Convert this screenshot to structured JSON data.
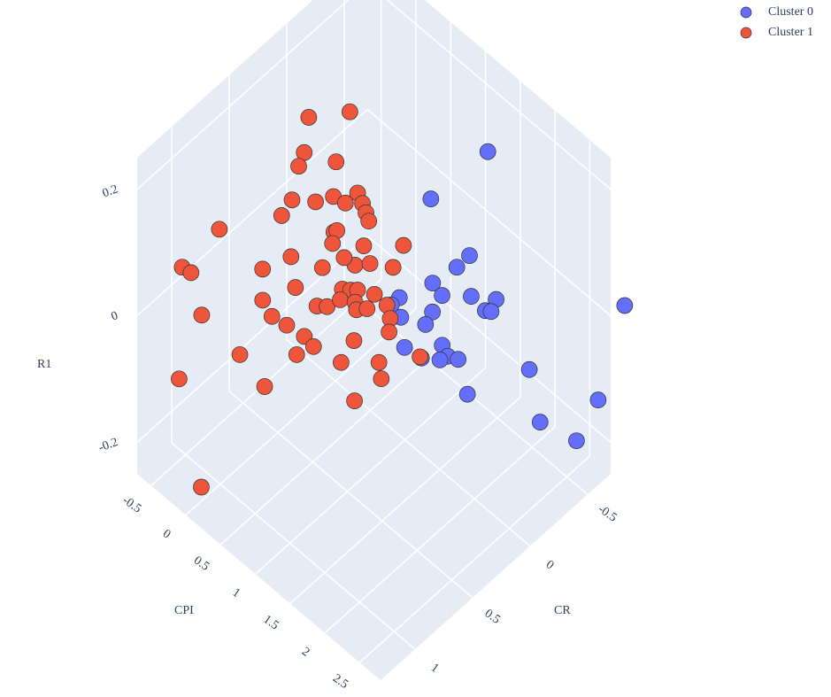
{
  "chart_data": {
    "type": "scatter3d",
    "xlabel": "CPI",
    "ylabel": "CR",
    "zlabel": "R1",
    "xlim": [
      -0.7,
      2.8
    ],
    "ylim": [
      -0.7,
      1.3
    ],
    "zlim": [
      -0.25,
      0.25
    ],
    "xticks": [
      -0.5,
      0,
      0.5,
      1,
      1.5,
      2,
      2.5
    ],
    "yticks": [
      -0.5,
      0,
      0.5,
      1
    ],
    "zticks": [
      -0.2,
      0,
      0.2
    ],
    "grid": true,
    "legend": "top-right",
    "series": [
      {
        "name": "Cluster 0",
        "color": "#636efa",
        "x": [
          1.53,
          1.29,
          1.73,
          1.68,
          1.58,
          1.7,
          1.87,
          2.08,
          2.04,
          2.09,
          1.66,
          1.35,
          1.35,
          1.47,
          1.66,
          1.85,
          1.59,
          1.93,
          1.98,
          1.85,
          1.75,
          2.18,
          2.59,
          2.82,
          2.62,
          2.53,
          2.64
        ],
        "y": [
          -0.4,
          -0.05,
          -0.12,
          -0.04,
          0.11,
          0.1,
          -0.05,
          -0.14,
          -0.07,
          -0.09,
          0.16,
          0.26,
          0.33,
          0.32,
          0.22,
          0.19,
          0.36,
          0.19,
          0.13,
          0.21,
          0.31,
          0.17,
          -0.12,
          -0.81,
          -0.7,
          -0.25,
          -0.5
        ],
        "z": [
          0.19,
          0.15,
          0.09,
          0.08,
          0.07,
          0.06,
          0.05,
          0.05,
          0.04,
          0.04,
          0.04,
          0.05,
          0.05,
          0.04,
          0.03,
          0.01,
          0.01,
          0,
          -0.01,
          -0.01,
          0,
          -0.04,
          -0.01,
          0,
          -0.15,
          -0.12,
          -0.18
        ]
      },
      {
        "name": "Cluster 1",
        "color": "#ef553b",
        "x": [
          0.08,
          0.39,
          0.18,
          0.2,
          0.44,
          0.7,
          0.55,
          0.64,
          0.41,
          0.22,
          0.22,
          0.77,
          0.82,
          0.91,
          -0.18,
          0.69,
          0.7,
          0.67,
          0.92,
          1.21,
          0.69,
          0.42,
          0.91,
          1.06,
          0.82,
          1.21,
          -0.35,
          -0.24,
          0.26,
          0.55,
          0.36,
          -0.02,
          0.51,
          0.64,
          0.81,
          0.89,
          0.91,
          0.98,
          0.93,
          1.03,
          1.19,
          1.06,
          1.08,
          1.15,
          1.32,
          1.35,
          1.4,
          0.81,
          0.91,
          1.16,
          0.8,
          0.38,
          -0.13,
          0.67,
          1.14,
          1.42,
          1.52,
          1.4,
          0.04,
          1.73
        ],
        "y": [
          0.28,
          0.11,
          0.38,
          0.44,
          0.26,
          0.23,
          0.35,
          0.3,
          0.42,
          0.51,
          0.6,
          0.23,
          0.23,
          0.26,
          0.9,
          0.43,
          0.41,
          0.43,
          0.31,
          0.14,
          0.53,
          0.64,
          0.38,
          0.34,
          0.42,
          0.23,
          1.12,
          1.11,
          0.79,
          0.68,
          0.85,
          1.15,
          0.86,
          0.81,
          0.65,
          0.61,
          0.49,
          0.46,
          0.52,
          0.43,
          0.38,
          0.47,
          0.47,
          0.42,
          0.35,
          0.34,
          0.38,
          0.76,
          0.74,
          0.54,
          0.82,
          1.06,
          1.28,
          1.02,
          0.64,
          0.48,
          0.52,
          0.68,
          1.19,
          0.31
        ],
        "z": [
          0.22,
          0.23,
          0.19,
          0.18,
          0.18,
          0.15,
          0.15,
          0.14,
          0.14,
          0.14,
          0.13,
          0.14,
          0.13,
          0.13,
          0.12,
          0.12,
          0.12,
          0.1,
          0.1,
          0.1,
          0.08,
          0.09,
          0.08,
          0.09,
          0.09,
          0.08,
          0.08,
          0.08,
          0.08,
          0.06,
          0.05,
          0.04,
          0.04,
          0.03,
          0.05,
          0.05,
          0.06,
          0.06,
          0.05,
          0.06,
          0.06,
          0.05,
          0.04,
          0.04,
          0.05,
          0.03,
          0.02,
          0.02,
          0.01,
          0.01,
          0,
          0,
          -0.05,
          -0.03,
          -0.01,
          -0.01,
          -0.02,
          -0.04,
          -0.22,
          0
        ]
      }
    ]
  }
}
